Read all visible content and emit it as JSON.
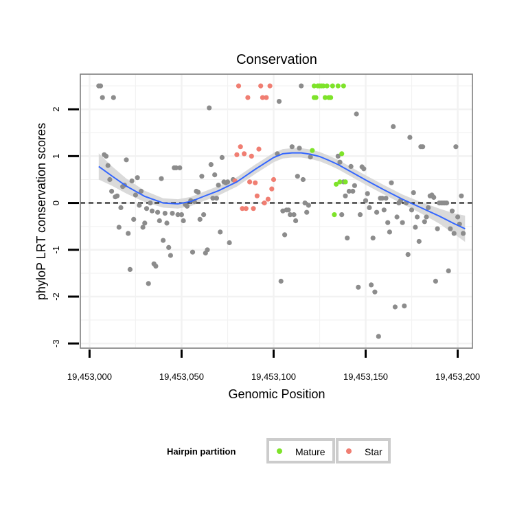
{
  "chart_data": {
    "type": "scatter",
    "title": "Conservation",
    "xlabel": "Genomic Position",
    "ylabel": "phyloP LRT conservation scores",
    "xlim": [
      19452995,
      19453208
    ],
    "ylim": [
      -3.1,
      2.75
    ],
    "x_ticks": [
      19453000,
      19453050,
      19453100,
      19453150,
      19453200
    ],
    "x_tick_labels": [
      "19,453,000",
      "19,453,050",
      "19,453,100",
      "19,453,150",
      "19,453,200"
    ],
    "y_ticks": [
      -3,
      -2,
      -1,
      0,
      1,
      2
    ],
    "y_tick_labels": [
      "-3",
      "-2",
      "-1",
      "0",
      "1",
      "2"
    ],
    "reference_line": {
      "y": 0,
      "style": "dashed"
    },
    "colors": {
      "other": "#8c8c8c",
      "mature": "#7ee32a",
      "star": "#f07e72",
      "smooth_line": "#3366ff",
      "smooth_band": "#d6d6d6",
      "grid": "#f2f2f2",
      "frame": "#7f7f7f"
    },
    "legend": {
      "title": "Hairpin partition",
      "position": "bottom",
      "entries": [
        {
          "key": "mature",
          "label": "Mature"
        },
        {
          "key": "star",
          "label": "Star"
        }
      ]
    },
    "smooth": {
      "x": [
        19453005,
        19453012,
        19453020,
        19453030,
        19453040,
        19453048,
        19453055,
        19453062,
        19453070,
        19453080,
        19453090,
        19453100,
        19453105,
        19453110,
        19453115,
        19453120,
        19453125,
        19453130,
        19453135,
        19453140,
        19453150,
        19453160,
        19453170,
        19453180,
        19453190,
        19453198,
        19453204
      ],
      "y": [
        0.78,
        0.58,
        0.36,
        0.14,
        0.0,
        -0.02,
        0.03,
        0.14,
        0.26,
        0.45,
        0.72,
        0.97,
        1.05,
        1.07,
        1.07,
        1.04,
        0.99,
        0.91,
        0.82,
        0.71,
        0.49,
        0.28,
        0.08,
        -0.1,
        -0.28,
        -0.44,
        -0.55
      ],
      "se": [
        0.28,
        0.21,
        0.16,
        0.12,
        0.1,
        0.1,
        0.1,
        0.1,
        0.1,
        0.1,
        0.1,
        0.1,
        0.1,
        0.1,
        0.1,
        0.1,
        0.1,
        0.1,
        0.1,
        0.1,
        0.1,
        0.1,
        0.1,
        0.12,
        0.16,
        0.22,
        0.28
      ]
    },
    "series": [
      {
        "name": "other",
        "points": [
          [
            19453005,
            2.5
          ],
          [
            19453006,
            2.5
          ],
          [
            19453007,
            2.25
          ],
          [
            19453008,
            1.03
          ],
          [
            19453009,
            1.0
          ],
          [
            19453010,
            0.8
          ],
          [
            19453011,
            0.5
          ],
          [
            19453012,
            0.25
          ],
          [
            19453013,
            2.25
          ],
          [
            19453014,
            0.13
          ],
          [
            19453015,
            0.15
          ],
          [
            19453016,
            -0.52
          ],
          [
            19453017,
            -0.1
          ],
          [
            19453018,
            0.35
          ],
          [
            19453019,
            0.38
          ],
          [
            19453020,
            0.92
          ],
          [
            19453021,
            -0.65
          ],
          [
            19453022,
            -1.42
          ],
          [
            19453023,
            0.47
          ],
          [
            19453024,
            -0.35
          ],
          [
            19453025,
            0.17
          ],
          [
            19453026,
            0.54
          ],
          [
            19453027,
            -0.05
          ],
          [
            19453028,
            0.25
          ],
          [
            19453029,
            -0.52
          ],
          [
            19453030,
            -0.43
          ],
          [
            19453031,
            -0.12
          ],
          [
            19453032,
            -1.72
          ],
          [
            19453033,
            0.0
          ],
          [
            19453034,
            -0.17
          ],
          [
            19453035,
            -1.3
          ],
          [
            19453036,
            -1.35
          ],
          [
            19453037,
            -0.2
          ],
          [
            19453038,
            -0.38
          ],
          [
            19453039,
            0.52
          ],
          [
            19453040,
            -0.8
          ],
          [
            19453041,
            -0.22
          ],
          [
            19453042,
            -0.43
          ],
          [
            19453043,
            -0.95
          ],
          [
            19453044,
            -1.12
          ],
          [
            19453045,
            -0.22
          ],
          [
            19453046,
            0.75
          ],
          [
            19453047,
            0.75
          ],
          [
            19453048,
            -0.25
          ],
          [
            19453049,
            0.75
          ],
          [
            19453050,
            -0.25
          ],
          [
            19453051,
            -0.38
          ],
          [
            19453052,
            -0.03
          ],
          [
            19453053,
            -0.07
          ],
          [
            19453055,
            0.05
          ],
          [
            19453056,
            -1.05
          ],
          [
            19453057,
            0.03
          ],
          [
            19453058,
            0.25
          ],
          [
            19453059,
            0.23
          ],
          [
            19453060,
            -0.35
          ],
          [
            19453061,
            0.57
          ],
          [
            19453062,
            -0.25
          ],
          [
            19453063,
            -1.07
          ],
          [
            19453064,
            -1.0
          ],
          [
            19453065,
            2.03
          ],
          [
            19453066,
            0.82
          ],
          [
            19453067,
            0.1
          ],
          [
            19453068,
            0.6
          ],
          [
            19453069,
            0.1
          ],
          [
            19453070,
            0.38
          ],
          [
            19453071,
            -0.62
          ],
          [
            19453072,
            0.97
          ],
          [
            19453073,
            0.45
          ],
          [
            19453074,
            0.43
          ],
          [
            19453075,
            0.45
          ],
          [
            19453076,
            -0.85
          ],
          [
            19453078,
            0.5
          ],
          [
            19453102,
            1.05
          ],
          [
            19453103,
            2.17
          ],
          [
            19453104,
            -1.67
          ],
          [
            19453105,
            -0.17
          ],
          [
            19453106,
            -0.68
          ],
          [
            19453107,
            -0.15
          ],
          [
            19453108,
            -0.15
          ],
          [
            19453109,
            -0.25
          ],
          [
            19453110,
            1.2
          ],
          [
            19453111,
            -0.25
          ],
          [
            19453112,
            -0.38
          ],
          [
            19453113,
            0.57
          ],
          [
            19453114,
            1.17
          ],
          [
            19453115,
            2.5
          ],
          [
            19453116,
            0.5
          ],
          [
            19453117,
            0.0
          ],
          [
            19453118,
            -0.2
          ],
          [
            19453119,
            -0.05
          ],
          [
            19453120,
            0.98
          ],
          [
            19453135,
            1.0
          ],
          [
            19453136,
            0.87
          ],
          [
            19453137,
            -0.25
          ],
          [
            19453138,
            0.45
          ],
          [
            19453139,
            0.15
          ],
          [
            19453140,
            -0.75
          ],
          [
            19453141,
            0.25
          ],
          [
            19453142,
            0.78
          ],
          [
            19453143,
            0.25
          ],
          [
            19453144,
            0.37
          ],
          [
            19453145,
            1.9
          ],
          [
            19453146,
            -1.8
          ],
          [
            19453147,
            -0.25
          ],
          [
            19453148,
            0.77
          ],
          [
            19453149,
            0.73
          ],
          [
            19453150,
            0.05
          ],
          [
            19453151,
            0.2
          ],
          [
            19453152,
            -0.1
          ],
          [
            19453153,
            -1.75
          ],
          [
            19453154,
            -0.75
          ],
          [
            19453155,
            -1.9
          ],
          [
            19453156,
            -0.2
          ],
          [
            19453157,
            -2.85
          ],
          [
            19453158,
            0.1
          ],
          [
            19453159,
            0.1
          ],
          [
            19453160,
            -0.15
          ],
          [
            19453161,
            0.1
          ],
          [
            19453162,
            -0.42
          ],
          [
            19453163,
            -0.62
          ],
          [
            19453164,
            0.43
          ],
          [
            19453165,
            1.63
          ],
          [
            19453166,
            -2.22
          ],
          [
            19453167,
            -0.3
          ],
          [
            19453168,
            0.0
          ],
          [
            19453169,
            0.05
          ],
          [
            19453170,
            -0.42
          ],
          [
            19453171,
            -2.2
          ],
          [
            19453172,
            0.0
          ],
          [
            19453173,
            -1.1
          ],
          [
            19453174,
            1.4
          ],
          [
            19453175,
            -0.15
          ],
          [
            19453176,
            0.22
          ],
          [
            19453177,
            -0.52
          ],
          [
            19453178,
            -0.3
          ],
          [
            19453179,
            -0.82
          ],
          [
            19453180,
            1.2
          ],
          [
            19453181,
            1.2
          ],
          [
            19453182,
            -0.4
          ],
          [
            19453183,
            -0.3
          ],
          [
            19453184,
            -0.1
          ],
          [
            19453185,
            0.15
          ],
          [
            19453186,
            0.17
          ],
          [
            19453187,
            0.12
          ],
          [
            19453188,
            -1.67
          ],
          [
            19453189,
            -0.55
          ],
          [
            19453190,
            0.0
          ],
          [
            19453191,
            0.0
          ],
          [
            19453192,
            0.0
          ],
          [
            19453193,
            0.0
          ],
          [
            19453194,
            0.0
          ],
          [
            19453195,
            -1.45
          ],
          [
            19453196,
            -0.55
          ],
          [
            19453197,
            -0.17
          ],
          [
            19453198,
            -0.65
          ],
          [
            19453199,
            1.2
          ],
          [
            19453200,
            -0.3
          ],
          [
            19453201,
            -0.45
          ],
          [
            19453202,
            0.15
          ],
          [
            19453203,
            -0.65
          ]
        ]
      },
      {
        "name": "star",
        "points": [
          [
            19453079,
            0.47
          ],
          [
            19453080,
            1.03
          ],
          [
            19453081,
            2.5
          ],
          [
            19453082,
            1.2
          ],
          [
            19453083,
            -0.12
          ],
          [
            19453084,
            1.05
          ],
          [
            19453085,
            -0.12
          ],
          [
            19453086,
            2.25
          ],
          [
            19453087,
            0.45
          ],
          [
            19453088,
            1.0
          ],
          [
            19453089,
            -0.12
          ],
          [
            19453090,
            0.43
          ],
          [
            19453091,
            0.15
          ],
          [
            19453092,
            1.15
          ],
          [
            19453093,
            2.5
          ],
          [
            19453094,
            2.25
          ],
          [
            19453095,
            0.0
          ],
          [
            19453096,
            2.25
          ],
          [
            19453097,
            0.08
          ],
          [
            19453098,
            2.5
          ],
          [
            19453099,
            0.3
          ],
          [
            19453100,
            0.5
          ]
        ]
      },
      {
        "name": "mature",
        "points": [
          [
            19453121,
            1.12
          ],
          [
            19453122,
            2.25
          ],
          [
            19453122,
            2.5
          ],
          [
            19453123,
            2.25
          ],
          [
            19453124,
            2.5
          ],
          [
            19453125,
            2.5
          ],
          [
            19453126,
            2.5
          ],
          [
            19453127,
            2.5
          ],
          [
            19453128,
            2.25
          ],
          [
            19453129,
            2.5
          ],
          [
            19453130,
            2.25
          ],
          [
            19453131,
            2.25
          ],
          [
            19453132,
            2.5
          ],
          [
            19453133,
            -0.25
          ],
          [
            19453134,
            0.4
          ],
          [
            19453135,
            2.5
          ],
          [
            19453136,
            0.45
          ],
          [
            19453137,
            1.05
          ],
          [
            19453138,
            2.5
          ],
          [
            19453139,
            0.45
          ]
        ]
      }
    ]
  }
}
